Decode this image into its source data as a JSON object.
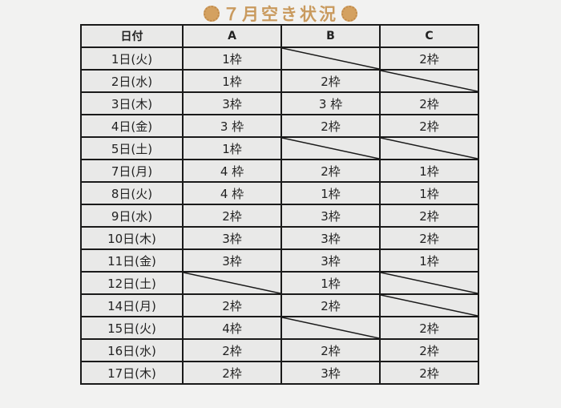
{
  "title": "７月空き状況",
  "accent_color": "#c99a5e",
  "headers": [
    "日付",
    "A",
    "B",
    "C"
  ],
  "rows": [
    {
      "date": "1日(火)",
      "A": "1枠",
      "B": "",
      "C": "2枠"
    },
    {
      "date": "2日(水)",
      "A": "1枠",
      "B": "2枠",
      "C": ""
    },
    {
      "date": "3日(木)",
      "A": "3枠",
      "B": "3 枠",
      "C": "2枠"
    },
    {
      "date": "4日(金)",
      "A": "3 枠",
      "B": "2枠",
      "C": "2枠"
    },
    {
      "date": "5日(土)",
      "A": "1枠",
      "B": "",
      "C": ""
    },
    {
      "date": "7日(月)",
      "A": "4 枠",
      "B": "2枠",
      "C": "1枠"
    },
    {
      "date": "8日(火)",
      "A": "4 枠",
      "B": "1枠",
      "C": "1枠"
    },
    {
      "date": "9日(水)",
      "A": "2枠",
      "B": "3枠",
      "C": "2枠"
    },
    {
      "date": "10日(木)",
      "A": "3枠",
      "B": "3枠",
      "C": "2枠"
    },
    {
      "date": "11日(金)",
      "A": "3枠",
      "B": "3枠",
      "C": "1枠"
    },
    {
      "date": "12日(土)",
      "A": "",
      "B": "1枠",
      "C": ""
    },
    {
      "date": "14日(月)",
      "A": "2枠",
      "B": "2枠",
      "C": ""
    },
    {
      "date": "15日(火)",
      "A": "4枠",
      "B": "",
      "C": "2枠"
    },
    {
      "date": "16日(水)",
      "A": "2枠",
      "B": "2枠",
      "C": "2枠"
    },
    {
      "date": "17日(木)",
      "A": "2枠",
      "B": "3枠",
      "C": "2枠"
    }
  ]
}
